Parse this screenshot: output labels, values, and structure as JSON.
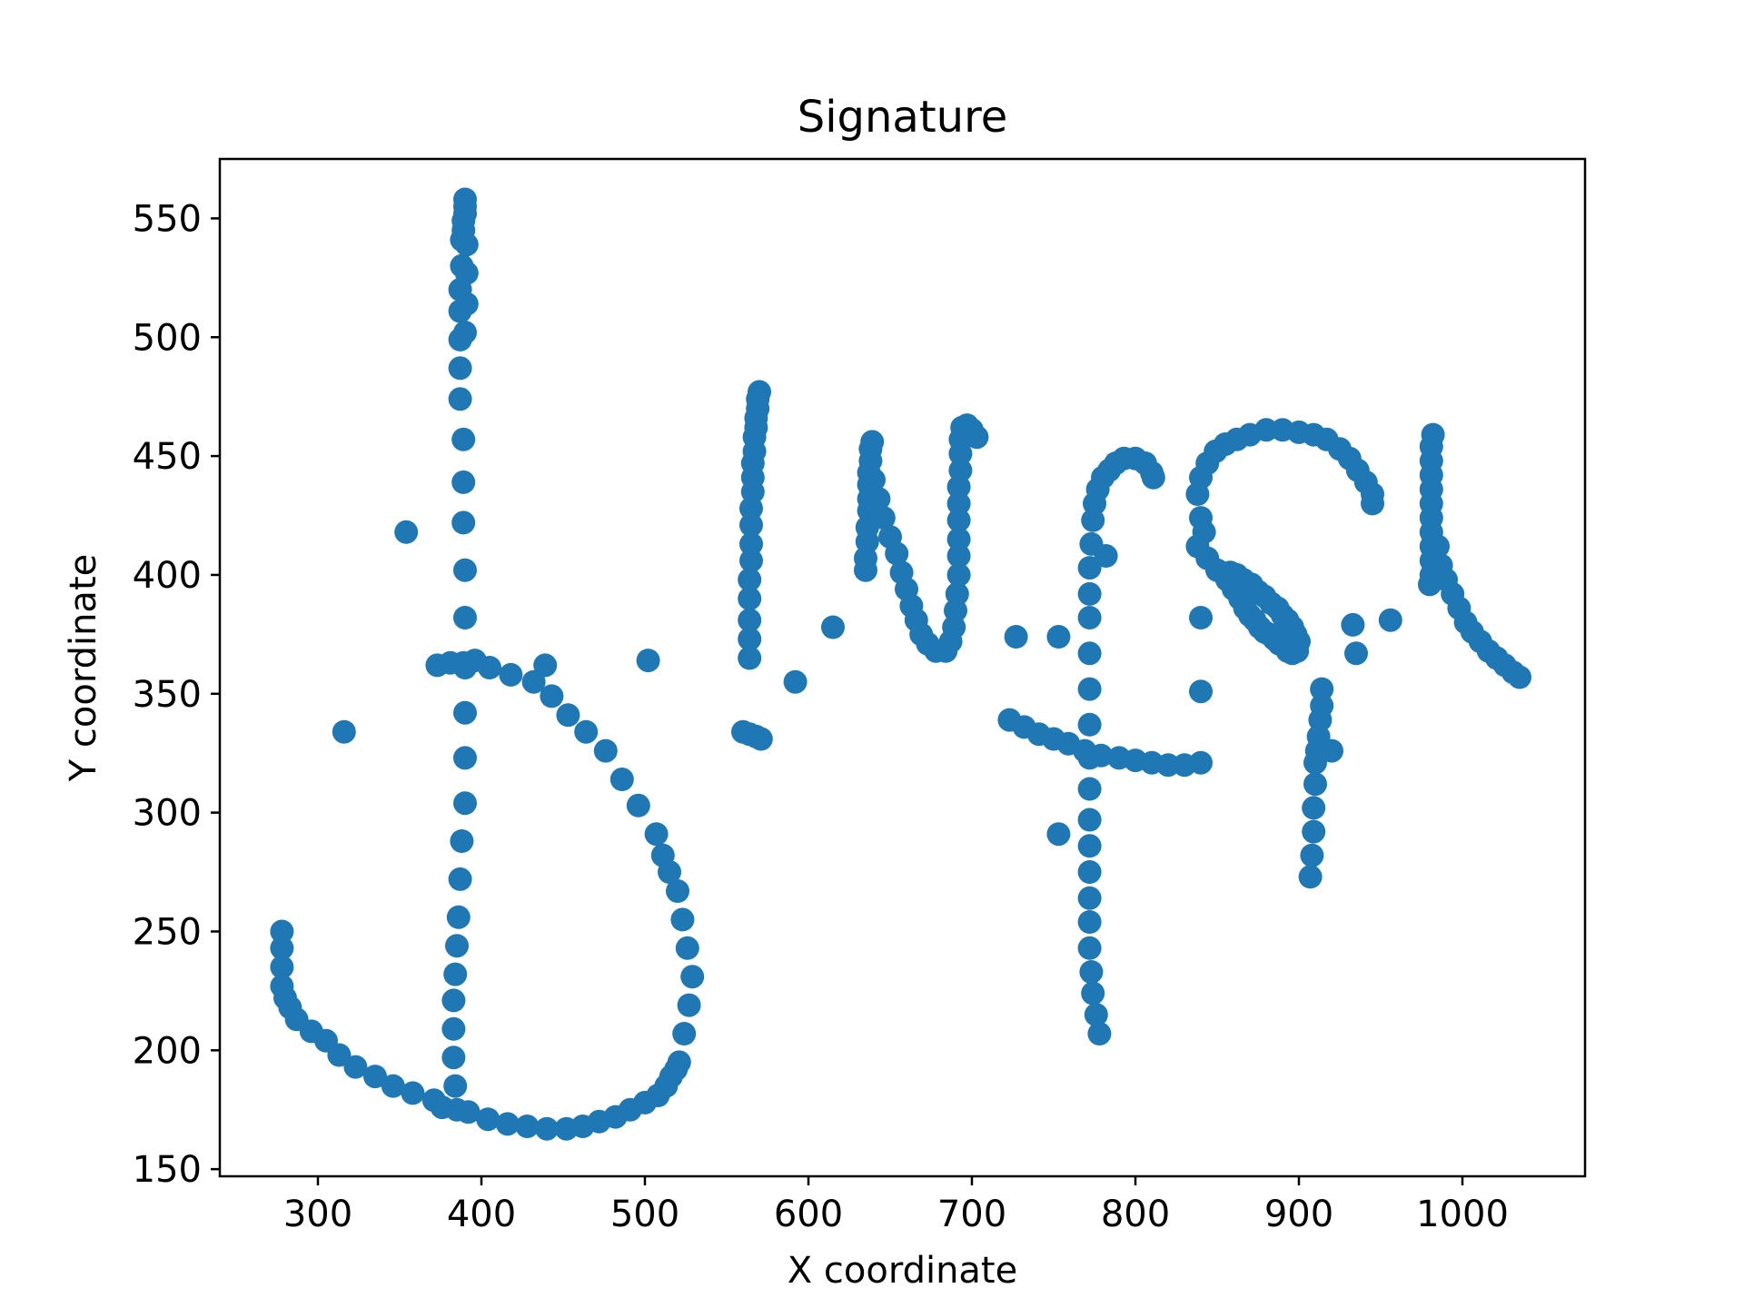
{
  "chart_data": {
    "type": "scatter",
    "title": "Signature",
    "xlabel": "X coordinate",
    "ylabel": "Y coordinate",
    "xlim": [
      240,
      1075
    ],
    "ylim": [
      147,
      575
    ],
    "xticks": [
      300,
      400,
      500,
      600,
      700,
      800,
      900,
      1000
    ],
    "yticks": [
      150,
      200,
      250,
      300,
      350,
      400,
      450,
      500,
      550
    ],
    "grid": false,
    "legend": false,
    "marker_color": "#1f77b4",
    "points": [
      [
        390,
        558
      ],
      [
        390,
        555
      ],
      [
        390,
        552
      ],
      [
        389,
        549
      ],
      [
        389,
        545
      ],
      [
        388,
        541
      ],
      [
        391,
        539
      ],
      [
        388,
        530
      ],
      [
        391,
        527
      ],
      [
        387,
        520
      ],
      [
        391,
        514
      ],
      [
        387,
        511
      ],
      [
        390,
        502
      ],
      [
        387,
        499
      ],
      [
        387,
        487
      ],
      [
        387,
        474
      ],
      [
        389,
        457
      ],
      [
        389,
        439
      ],
      [
        389,
        422
      ],
      [
        390,
        402
      ],
      [
        390,
        382
      ],
      [
        390,
        361
      ],
      [
        390,
        342
      ],
      [
        390,
        323
      ],
      [
        390,
        304
      ],
      [
        388,
        288
      ],
      [
        387,
        272
      ],
      [
        386,
        256
      ],
      [
        385,
        244
      ],
      [
        384,
        232
      ],
      [
        383,
        221
      ],
      [
        383,
        209
      ],
      [
        383,
        197
      ],
      [
        384,
        185
      ],
      [
        385,
        175
      ],
      [
        392,
        174
      ],
      [
        404,
        171
      ],
      [
        416,
        169
      ],
      [
        428,
        168
      ],
      [
        440,
        167
      ],
      [
        452,
        167
      ],
      [
        462,
        168
      ],
      [
        472,
        170
      ],
      [
        482,
        172
      ],
      [
        491,
        175
      ],
      [
        500,
        178
      ],
      [
        508,
        181
      ],
      [
        513,
        185
      ],
      [
        516,
        189
      ],
      [
        519,
        192
      ],
      [
        521,
        195
      ],
      [
        524,
        207
      ],
      [
        527,
        219
      ],
      [
        529,
        231
      ],
      [
        526,
        243
      ],
      [
        523,
        255
      ],
      [
        520,
        267
      ],
      [
        515,
        275
      ],
      [
        511,
        282
      ],
      [
        507,
        291
      ],
      [
        496,
        303
      ],
      [
        486,
        314
      ],
      [
        476,
        326
      ],
      [
        464,
        334
      ],
      [
        453,
        341
      ],
      [
        443,
        349
      ],
      [
        432,
        355
      ],
      [
        418,
        358
      ],
      [
        405,
        361
      ],
      [
        396,
        364
      ],
      [
        389,
        363
      ],
      [
        381,
        363
      ],
      [
        373,
        362
      ],
      [
        278,
        250
      ],
      [
        278,
        243
      ],
      [
        278,
        235
      ],
      [
        278,
        227
      ],
      [
        280,
        222
      ],
      [
        283,
        218
      ],
      [
        287,
        213
      ],
      [
        296,
        208
      ],
      [
        305,
        204
      ],
      [
        313,
        198
      ],
      [
        323,
        193
      ],
      [
        335,
        189
      ],
      [
        346,
        185
      ],
      [
        358,
        182
      ],
      [
        371,
        179
      ],
      [
        376,
        176
      ],
      [
        354,
        418
      ],
      [
        316,
        334
      ],
      [
        439,
        362
      ],
      [
        502,
        364
      ],
      [
        570,
        477
      ],
      [
        569,
        474
      ],
      [
        569,
        470
      ],
      [
        568,
        466
      ],
      [
        568,
        462
      ],
      [
        567,
        458
      ],
      [
        567,
        452
      ],
      [
        566,
        447
      ],
      [
        566,
        441
      ],
      [
        566,
        435
      ],
      [
        565,
        428
      ],
      [
        565,
        421
      ],
      [
        565,
        413
      ],
      [
        565,
        406
      ],
      [
        564,
        398
      ],
      [
        564,
        390
      ],
      [
        564,
        381
      ],
      [
        564,
        373
      ],
      [
        564,
        365
      ],
      [
        560,
        334
      ],
      [
        564,
        333
      ],
      [
        568,
        332
      ],
      [
        571,
        331
      ],
      [
        592,
        355
      ],
      [
        615,
        378
      ],
      [
        639,
        456
      ],
      [
        638,
        453
      ],
      [
        638,
        448
      ],
      [
        637,
        443
      ],
      [
        637,
        438
      ],
      [
        637,
        432
      ],
      [
        637,
        427
      ],
      [
        636,
        420
      ],
      [
        636,
        414
      ],
      [
        635,
        407
      ],
      [
        635,
        402
      ],
      [
        640,
        440
      ],
      [
        643,
        432
      ],
      [
        646,
        424
      ],
      [
        650,
        416
      ],
      [
        654,
        409
      ],
      [
        657,
        401
      ],
      [
        660,
        394
      ],
      [
        663,
        387
      ],
      [
        666,
        381
      ],
      [
        669,
        375
      ],
      [
        673,
        371
      ],
      [
        678,
        368
      ],
      [
        684,
        368
      ],
      [
        687,
        372
      ],
      [
        689,
        378
      ],
      [
        690,
        385
      ],
      [
        691,
        392
      ],
      [
        692,
        400
      ],
      [
        692,
        408
      ],
      [
        692,
        415
      ],
      [
        692,
        423
      ],
      [
        692,
        430
      ],
      [
        692,
        437
      ],
      [
        693,
        444
      ],
      [
        693,
        451
      ],
      [
        693,
        457
      ],
      [
        694,
        462
      ],
      [
        697,
        463
      ],
      [
        700,
        461
      ],
      [
        703,
        458
      ],
      [
        727,
        374
      ],
      [
        753,
        374
      ],
      [
        723,
        339
      ],
      [
        732,
        336
      ],
      [
        741,
        333
      ],
      [
        750,
        331
      ],
      [
        759,
        329
      ],
      [
        769,
        326
      ],
      [
        779,
        324
      ],
      [
        790,
        323
      ],
      [
        800,
        322
      ],
      [
        810,
        321
      ],
      [
        820,
        320
      ],
      [
        830,
        320
      ],
      [
        840,
        321
      ],
      [
        840,
        382
      ],
      [
        840,
        351
      ],
      [
        753,
        291
      ],
      [
        778,
        207
      ],
      [
        776,
        215
      ],
      [
        774,
        224
      ],
      [
        773,
        233
      ],
      [
        772,
        243
      ],
      [
        772,
        254
      ],
      [
        772,
        264
      ],
      [
        772,
        275
      ],
      [
        772,
        286
      ],
      [
        772,
        297
      ],
      [
        772,
        310
      ],
      [
        772,
        323
      ],
      [
        772,
        337
      ],
      [
        772,
        352
      ],
      [
        772,
        367
      ],
      [
        772,
        382
      ],
      [
        772,
        392
      ],
      [
        772,
        403
      ],
      [
        773,
        413
      ],
      [
        774,
        423
      ],
      [
        775,
        430
      ],
      [
        777,
        436
      ],
      [
        780,
        441
      ],
      [
        784,
        444
      ],
      [
        788,
        447
      ],
      [
        793,
        449
      ],
      [
        800,
        449
      ],
      [
        806,
        447
      ],
      [
        810,
        443
      ],
      [
        811,
        441
      ],
      [
        782,
        408
      ],
      [
        838,
        434
      ],
      [
        840,
        441
      ],
      [
        844,
        447
      ],
      [
        849,
        452
      ],
      [
        855,
        455
      ],
      [
        862,
        457
      ],
      [
        870,
        459
      ],
      [
        880,
        461
      ],
      [
        890,
        461
      ],
      [
        900,
        460
      ],
      [
        909,
        459
      ],
      [
        917,
        457
      ],
      [
        925,
        453
      ],
      [
        931,
        449
      ],
      [
        936,
        444
      ],
      [
        941,
        439
      ],
      [
        945,
        434
      ],
      [
        945,
        430
      ],
      [
        838,
        412
      ],
      [
        844,
        407
      ],
      [
        850,
        402
      ],
      [
        856,
        398
      ],
      [
        860,
        394
      ],
      [
        864,
        390
      ],
      [
        867,
        386
      ],
      [
        870,
        383
      ],
      [
        873,
        381
      ],
      [
        876,
        378
      ],
      [
        879,
        376
      ],
      [
        882,
        375
      ],
      [
        885,
        373
      ],
      [
        888,
        371
      ],
      [
        891,
        370
      ],
      [
        893,
        368
      ],
      [
        896,
        367
      ],
      [
        899,
        368
      ],
      [
        900,
        372
      ],
      [
        898,
        375
      ],
      [
        896,
        378
      ],
      [
        893,
        381
      ],
      [
        890,
        383
      ],
      [
        887,
        386
      ],
      [
        883,
        388
      ],
      [
        879,
        391
      ],
      [
        875,
        393
      ],
      [
        871,
        396
      ],
      [
        866,
        398
      ],
      [
        862,
        400
      ],
      [
        858,
        401
      ],
      [
        840,
        424
      ],
      [
        842,
        418
      ],
      [
        914,
        352
      ],
      [
        914,
        345
      ],
      [
        913,
        339
      ],
      [
        912,
        332
      ],
      [
        911,
        326
      ],
      [
        910,
        321
      ],
      [
        910,
        312
      ],
      [
        909,
        302
      ],
      [
        909,
        292
      ],
      [
        908,
        282
      ],
      [
        907,
        273
      ],
      [
        920,
        326
      ],
      [
        933,
        379
      ],
      [
        935,
        367
      ],
      [
        956,
        381
      ],
      [
        982,
        459
      ],
      [
        981,
        454
      ],
      [
        981,
        448
      ],
      [
        981,
        442
      ],
      [
        981,
        436
      ],
      [
        981,
        430
      ],
      [
        981,
        424
      ],
      [
        981,
        418
      ],
      [
        981,
        412
      ],
      [
        981,
        406
      ],
      [
        981,
        400
      ],
      [
        980,
        396
      ],
      [
        985,
        412
      ],
      [
        987,
        404
      ],
      [
        990,
        398
      ],
      [
        994,
        392
      ],
      [
        998,
        386
      ],
      [
        1002,
        380
      ],
      [
        1006,
        376
      ],
      [
        1011,
        372
      ],
      [
        1016,
        368
      ],
      [
        1021,
        365
      ],
      [
        1026,
        362
      ],
      [
        1031,
        359
      ],
      [
        1035,
        357
      ]
    ]
  }
}
